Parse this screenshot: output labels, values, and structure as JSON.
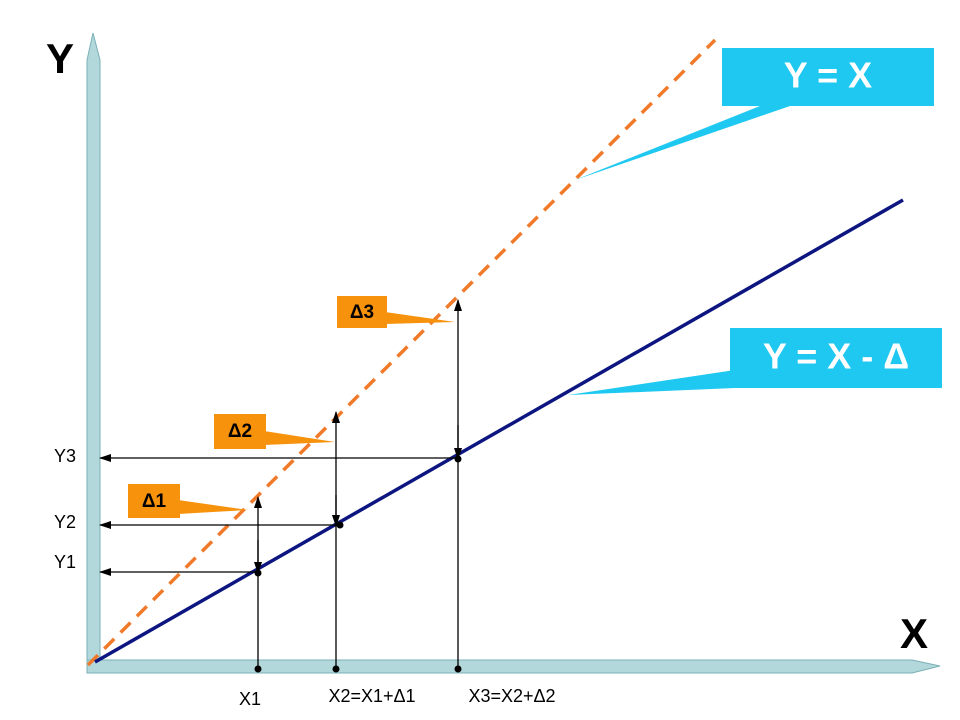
{
  "axes": {
    "y_label": "Y",
    "x_label": "X"
  },
  "callouts": {
    "identity": "Y = X",
    "shifted": "Y = X - Δ"
  },
  "deltas": [
    "Δ1",
    "Δ2",
    "Δ3"
  ],
  "y_marks": [
    "Y1",
    "Y2",
    "Y3"
  ],
  "x_marks": [
    "X1",
    "X2=X1+Δ1",
    "X3=X2+Δ2"
  ]
}
